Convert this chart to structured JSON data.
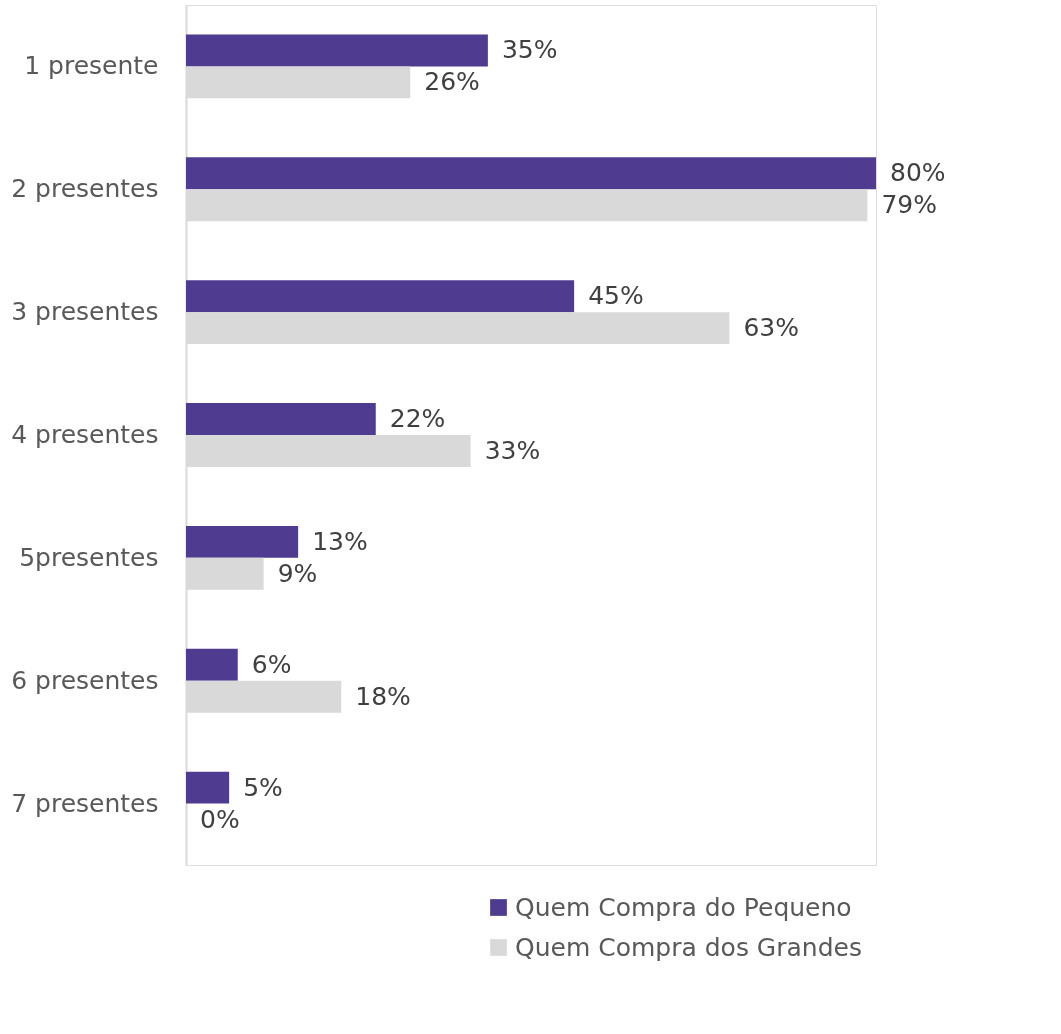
{
  "chart_data": {
    "type": "bar",
    "orientation": "horizontal",
    "categories": [
      "1 presente",
      "2 presentes",
      "3 presentes",
      "4 presentes",
      "5presentes",
      "6 presentes",
      "7 presentes"
    ],
    "series": [
      {
        "name": "Quem Compra do Pequeno",
        "color": "#4f3b8f",
        "values": [
          35,
          80,
          45,
          22,
          13,
          6,
          5
        ],
        "value_labels": [
          "35%",
          "80%",
          "45%",
          "22%",
          "13%",
          "6%",
          "5%"
        ]
      },
      {
        "name": "Quem Compra dos Grandes",
        "color": "#d9d9d9",
        "values": [
          26,
          79,
          63,
          33,
          9,
          18,
          0
        ],
        "value_labels": [
          "26%",
          "79%",
          "63%",
          "33%",
          "9%",
          "18%",
          "0%"
        ]
      }
    ],
    "legend": "bottom right"
  }
}
